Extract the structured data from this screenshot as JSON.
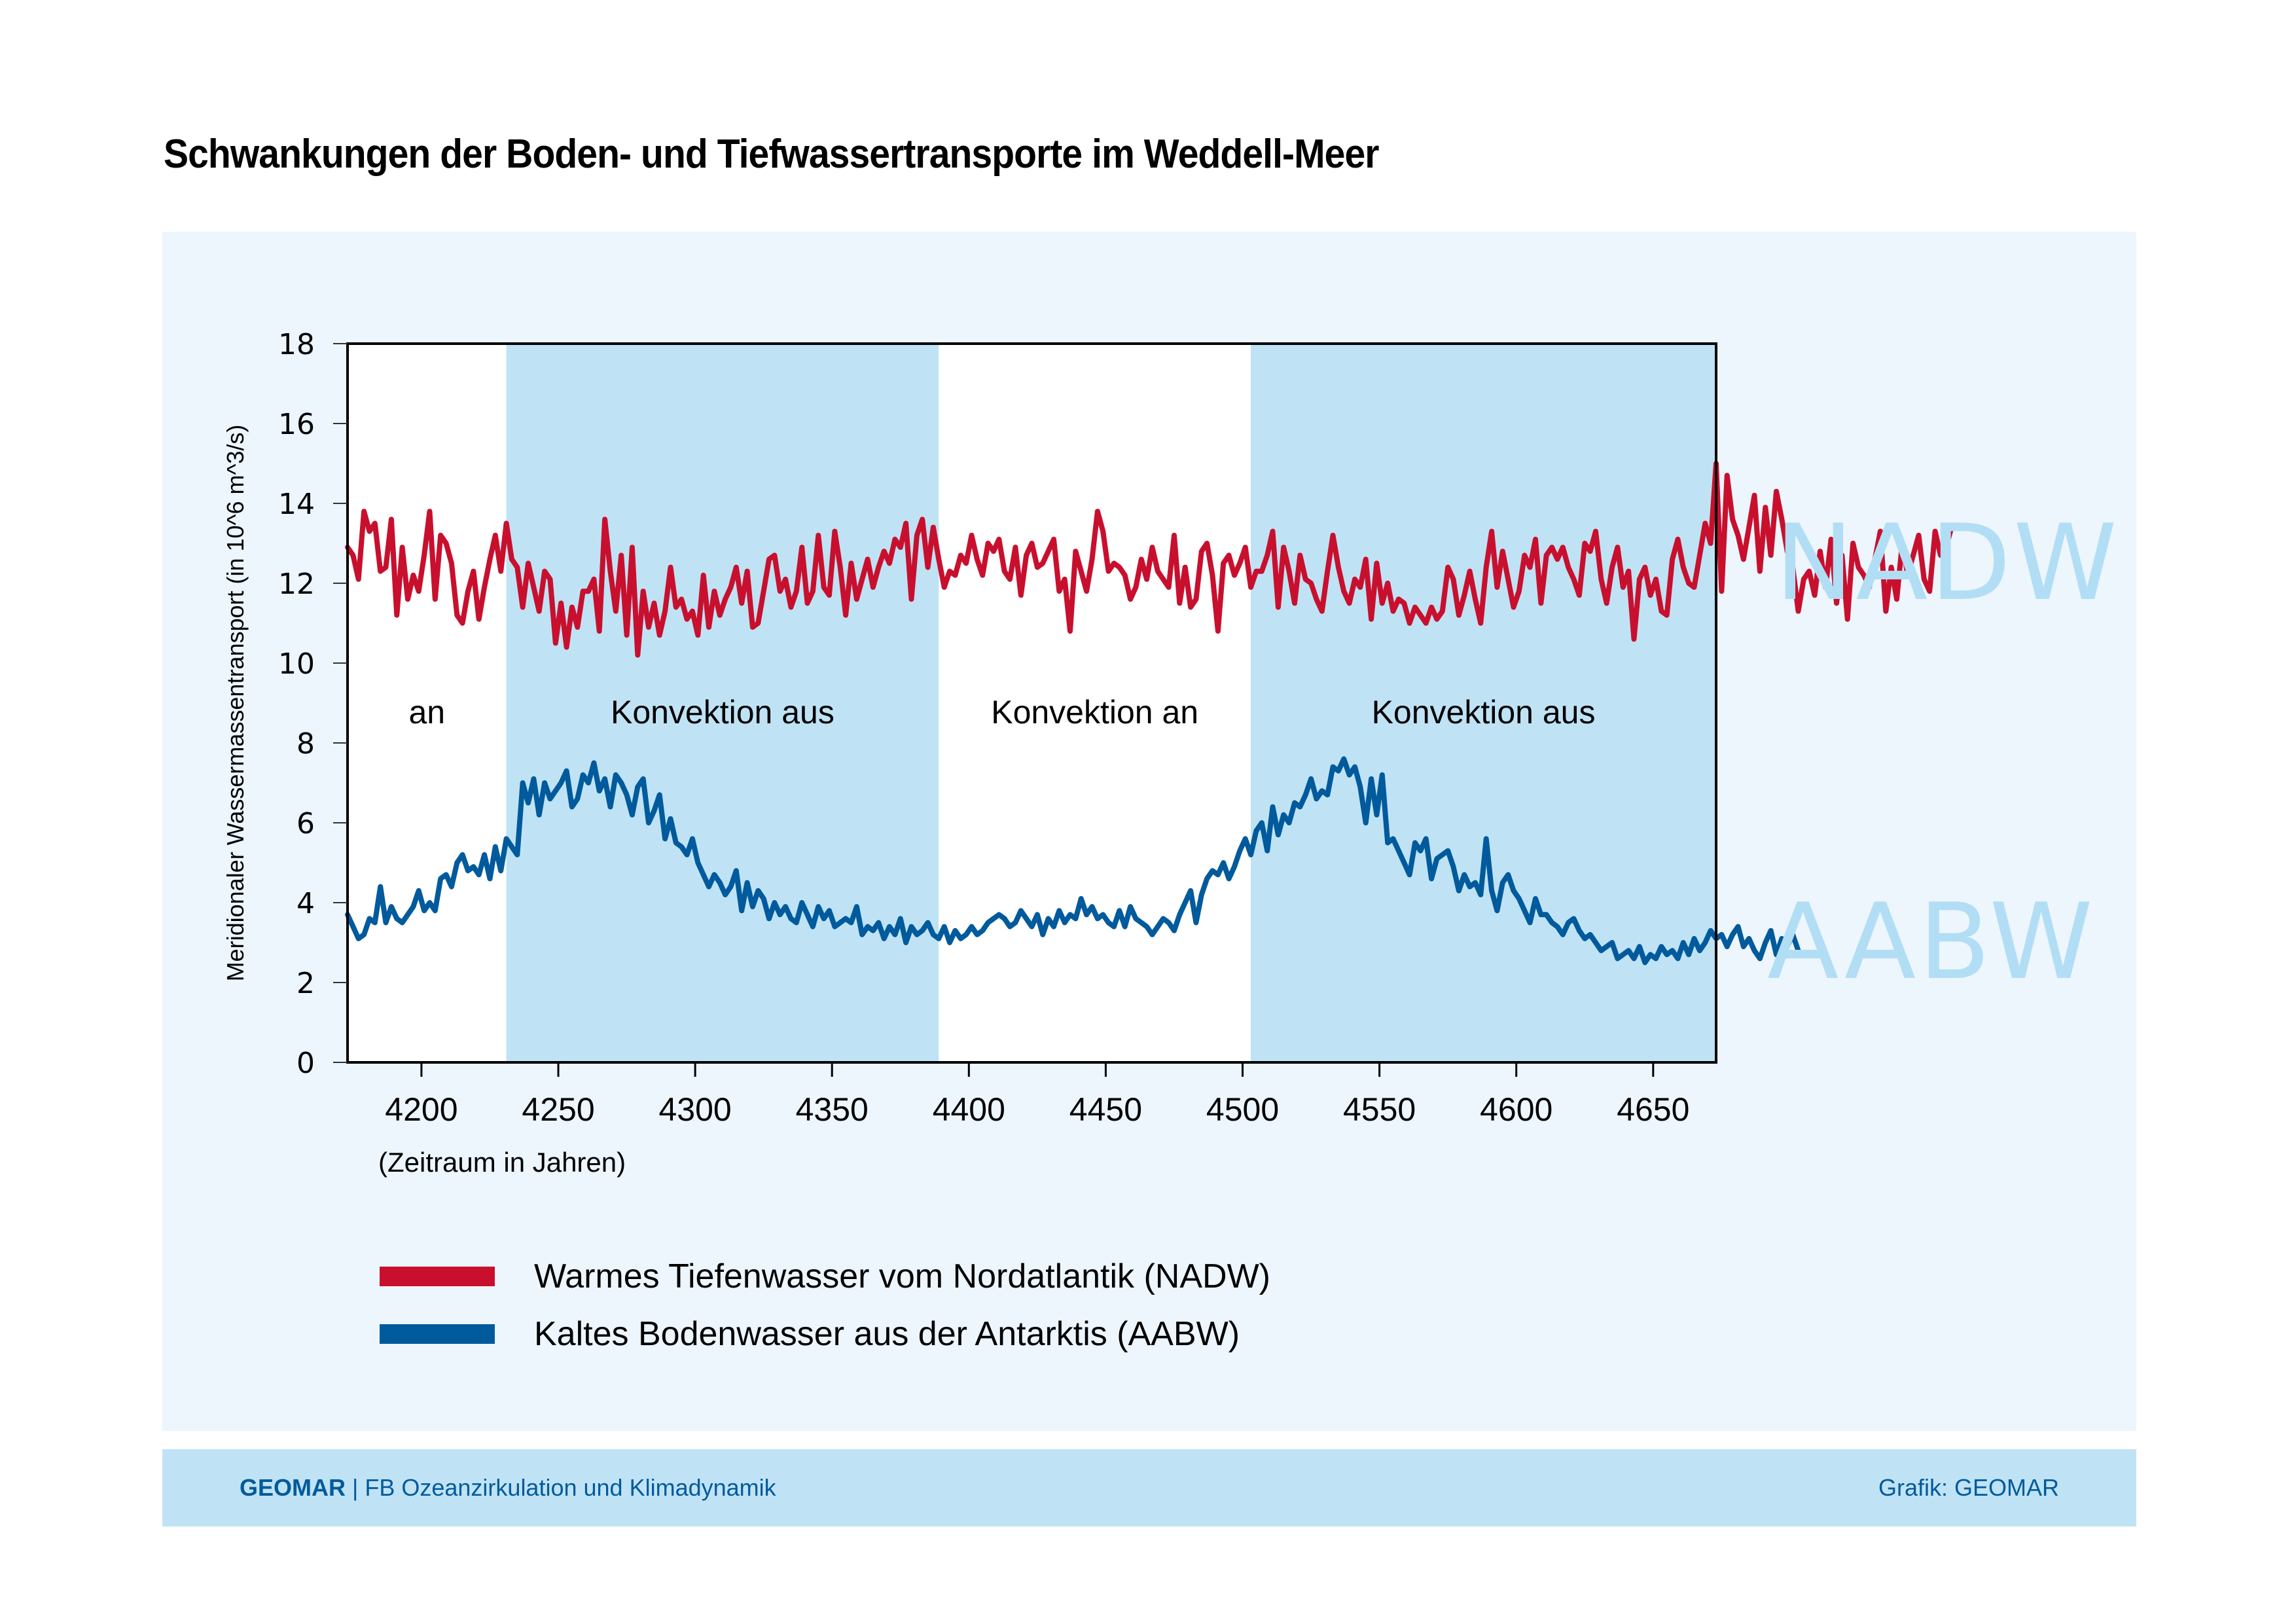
{
  "title": "Schwankungen der Boden- und Tiefwassertransporte im Weddell-Meer",
  "footer": {
    "brand": "GEOMAR",
    "separator": " | ",
    "department": "FB Ozeanzirkulation und Klimadynamik",
    "credit": "Grafik: GEOMAR"
  },
  "big_labels": {
    "nadw": "NADW",
    "aabw": "AABW"
  },
  "colors": {
    "nadw": "#c8102e",
    "aabw": "#005a9c",
    "shade": "#bfe3f5",
    "panel": "#edf5fd",
    "big_label": "#b1def4"
  },
  "chart_data": {
    "type": "line",
    "title": "Schwankungen der Boden- und Tiefwassertransporte im Weddell-Meer",
    "xlabel": "(Zeitraum in Jahren)",
    "ylabel": "Meridionaler Wassermassentransport  (in 10^6 m^3/s)",
    "xlim": [
      4173,
      4673
    ],
    "ylim": [
      0,
      18
    ],
    "xticks": [
      4200,
      4250,
      4300,
      4350,
      4400,
      4450,
      4500,
      4550,
      4600,
      4650
    ],
    "yticks": [
      0,
      2,
      4,
      6,
      8,
      10,
      12,
      14,
      16,
      18
    ],
    "grid": false,
    "legend": "bottom-left",
    "regions": [
      {
        "label": "an",
        "start": 4173,
        "end": 4231,
        "shaded": false
      },
      {
        "label": "Konvektion aus",
        "start": 4231,
        "end": 4389,
        "shaded": true
      },
      {
        "label": "Konvektion an",
        "start": 4389,
        "end": 4503,
        "shaded": false
      },
      {
        "label": "Konvektion aus",
        "start": 4503,
        "end": 4673,
        "shaded": true
      }
    ],
    "x_start": 4173,
    "x_step": 2,
    "series": [
      {
        "name": "Warmes Tiefenwasser vom Nordatlantik (NADW)",
        "key": "nadw",
        "values": [
          12.9,
          12.7,
          12.1,
          13.8,
          13.3,
          13.5,
          12.3,
          12.4,
          13.6,
          11.2,
          12.9,
          11.6,
          12.2,
          11.8,
          12.7,
          13.8,
          11.6,
          13.2,
          13.0,
          12.5,
          11.2,
          11.0,
          11.8,
          12.3,
          11.1,
          11.9,
          12.6,
          13.2,
          12.3,
          13.5,
          12.6,
          12.4,
          11.4,
          12.5,
          11.9,
          11.3,
          12.3,
          12.1,
          10.5,
          11.5,
          10.4,
          11.4,
          10.9,
          11.8,
          11.8,
          12.1,
          10.8,
          13.6,
          12.3,
          11.3,
          12.7,
          10.7,
          12.9,
          10.2,
          11.8,
          10.9,
          11.5,
          10.7,
          11.3,
          12.4,
          11.4,
          11.6,
          11.1,
          11.3,
          10.7,
          12.2,
          10.9,
          11.8,
          11.2,
          11.6,
          11.9,
          12.4,
          11.5,
          12.3,
          10.9,
          11.0,
          11.8,
          12.6,
          12.7,
          11.8,
          12.1,
          11.4,
          11.8,
          12.9,
          11.5,
          11.8,
          13.2,
          11.9,
          11.7,
          13.3,
          12.4,
          11.2,
          12.5,
          11.6,
          12.1,
          12.6,
          11.9,
          12.4,
          12.8,
          12.5,
          13.1,
          12.9,
          13.5,
          11.6,
          13.2,
          13.6,
          12.4,
          13.4,
          12.6,
          11.9,
          12.3,
          12.2,
          12.7,
          12.5,
          13.2,
          12.6,
          12.2,
          13.0,
          12.8,
          13.1,
          12.3,
          12.1,
          12.9,
          11.7,
          12.7,
          13.0,
          12.4,
          12.5,
          12.8,
          13.1,
          11.8,
          12.1,
          10.8,
          12.8,
          12.3,
          11.8,
          12.6,
          13.8,
          13.3,
          12.3,
          12.5,
          12.4,
          12.2,
          11.6,
          11.9,
          12.6,
          12.1,
          12.9,
          12.3,
          12.1,
          11.9,
          13.2,
          11.5,
          12.4,
          11.4,
          11.6,
          12.8,
          13.0,
          12.2,
          10.8,
          12.5,
          12.7,
          12.2,
          12.5,
          12.9,
          11.9,
          12.3,
          12.3,
          12.7,
          13.3,
          11.4,
          12.9,
          12.3,
          11.5,
          12.7,
          12.1,
          12.0,
          11.6,
          11.3,
          12.3,
          13.2,
          12.4,
          11.8,
          11.5,
          12.1,
          11.9,
          12.6,
          11.1,
          12.5,
          11.5,
          12.0,
          11.3,
          11.6,
          11.5,
          11.0,
          11.4,
          11.2,
          11.0,
          11.4,
          11.1,
          11.3,
          12.4,
          12.1,
          11.2,
          11.7,
          12.3,
          11.6,
          11.0,
          12.4,
          13.3,
          11.9,
          12.8,
          12.1,
          11.4,
          11.8,
          12.7,
          12.4,
          13.1,
          11.5,
          12.7,
          12.9,
          12.6,
          12.9,
          12.4,
          12.1,
          11.7,
          13.0,
          12.8,
          13.3,
          12.1,
          11.5,
          12.4,
          12.9,
          11.9,
          12.3,
          10.6,
          12.1,
          12.4,
          11.7,
          12.1,
          11.3,
          11.2,
          12.6,
          13.1,
          12.4,
          12.0,
          11.9,
          12.7,
          13.5,
          13.0,
          15.0,
          11.8,
          14.7,
          13.6,
          13.2,
          12.6,
          13.4,
          14.2,
          12.3,
          13.9,
          12.7,
          14.3,
          13.6,
          12.8,
          12.4,
          11.3,
          12.1,
          12.3,
          11.7,
          12.8,
          11.9,
          13.1,
          11.5,
          12.7,
          11.1,
          13.0,
          12.4,
          12.2,
          11.9,
          12.6,
          13.3,
          11.3,
          12.4,
          11.6,
          13.0,
          12.2,
          12.7,
          13.2,
          12.1,
          11.8,
          13.3,
          12.7,
          12.9,
          13.4
        ]
      },
      {
        "name": "Kaltes Bodenwasser aus der Antarktis (AABW)",
        "key": "aabw",
        "values": [
          3.7,
          3.4,
          3.1,
          3.2,
          3.6,
          3.5,
          4.4,
          3.5,
          3.9,
          3.6,
          3.5,
          3.7,
          3.9,
          4.3,
          3.8,
          4.0,
          3.8,
          4.6,
          4.7,
          4.4,
          5.0,
          5.2,
          4.8,
          4.9,
          4.7,
          5.2,
          4.6,
          5.4,
          4.8,
          5.6,
          5.4,
          5.2,
          7.0,
          6.5,
          7.1,
          6.2,
          7.0,
          6.6,
          6.8,
          7.0,
          7.3,
          6.4,
          6.6,
          7.2,
          7.0,
          7.5,
          6.8,
          7.1,
          6.4,
          7.2,
          7.0,
          6.7,
          6.2,
          6.9,
          7.1,
          6.0,
          6.3,
          6.7,
          5.6,
          6.1,
          5.5,
          5.4,
          5.2,
          5.6,
          5.0,
          4.7,
          4.4,
          4.7,
          4.5,
          4.2,
          4.4,
          4.8,
          3.8,
          4.5,
          3.9,
          4.3,
          4.1,
          3.6,
          4.0,
          3.7,
          3.9,
          3.6,
          3.5,
          4.0,
          3.7,
          3.4,
          3.9,
          3.6,
          3.8,
          3.4,
          3.5,
          3.6,
          3.5,
          3.9,
          3.2,
          3.4,
          3.3,
          3.5,
          3.1,
          3.4,
          3.2,
          3.6,
          3.0,
          3.4,
          3.2,
          3.3,
          3.5,
          3.2,
          3.1,
          3.4,
          3.0,
          3.3,
          3.1,
          3.2,
          3.4,
          3.2,
          3.3,
          3.5,
          3.6,
          3.7,
          3.6,
          3.4,
          3.5,
          3.8,
          3.6,
          3.4,
          3.7,
          3.2,
          3.6,
          3.4,
          3.8,
          3.5,
          3.7,
          3.6,
          4.1,
          3.7,
          3.9,
          3.6,
          3.7,
          3.5,
          3.4,
          3.8,
          3.4,
          3.9,
          3.6,
          3.5,
          3.4,
          3.2,
          3.4,
          3.6,
          3.5,
          3.3,
          3.7,
          4.0,
          4.3,
          3.5,
          4.2,
          4.6,
          4.8,
          4.7,
          5.0,
          4.6,
          4.9,
          5.3,
          5.6,
          5.2,
          5.8,
          6.0,
          5.3,
          6.4,
          5.7,
          6.2,
          6.0,
          6.5,
          6.4,
          6.7,
          7.1,
          6.6,
          6.8,
          6.7,
          7.4,
          7.3,
          7.6,
          7.2,
          7.4,
          6.9,
          6.0,
          7.1,
          6.2,
          7.2,
          5.5,
          5.6,
          5.3,
          5.0,
          4.7,
          5.5,
          5.3,
          5.6,
          4.6,
          5.1,
          5.2,
          5.3,
          4.9,
          4.3,
          4.7,
          4.4,
          4.5,
          4.2,
          5.6,
          4.3,
          3.8,
          4.5,
          4.7,
          4.3,
          4.1,
          3.8,
          3.5,
          4.1,
          3.7,
          3.7,
          3.5,
          3.4,
          3.2,
          3.5,
          3.6,
          3.3,
          3.1,
          3.2,
          3.0,
          2.8,
          2.9,
          3.0,
          2.6,
          2.7,
          2.8,
          2.6,
          2.9,
          2.5,
          2.7,
          2.6,
          2.9,
          2.7,
          2.8,
          2.6,
          3.0,
          2.7,
          3.1,
          2.8,
          3.0,
          3.3,
          3.1,
          3.2,
          2.9,
          3.2,
          3.4,
          2.9,
          3.1,
          2.8,
          2.6,
          3.0,
          3.3,
          2.7,
          3.1,
          2.9,
          3.2,
          2.8
        ]
      }
    ]
  }
}
